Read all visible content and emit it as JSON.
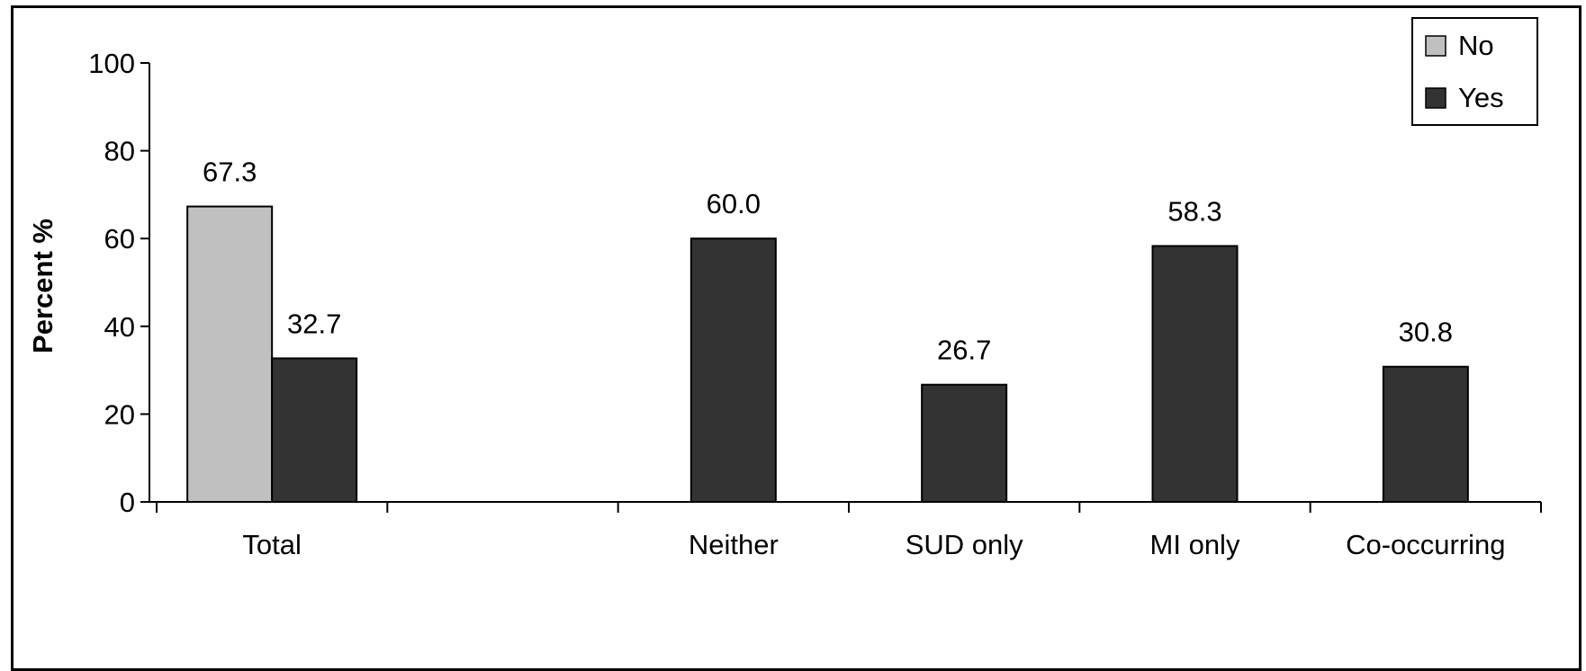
{
  "chart_data": {
    "type": "bar",
    "categories": [
      "Total",
      "",
      "Neither",
      "SUD only",
      "MI only",
      "Co-occurring"
    ],
    "series": [
      {
        "name": "No",
        "values": [
          67.3,
          null,
          null,
          null,
          null,
          null
        ],
        "color": "#c0c0c0"
      },
      {
        "name": "Yes",
        "values": [
          32.7,
          null,
          60.0,
          26.7,
          58.3,
          30.8
        ],
        "color": "#333333"
      }
    ],
    "data_labels": {
      "No": [
        "67.3",
        "",
        "",
        "",
        "",
        ""
      ],
      "Yes": [
        "32.7",
        "",
        "60.0",
        "26.7",
        "58.3",
        "30.8"
      ]
    },
    "title": "",
    "xlabel": "",
    "ylabel": "Percent %",
    "ylim": [
      0,
      100
    ],
    "yticks": [
      "0",
      "20",
      "40",
      "60",
      "80",
      "100"
    ],
    "grid": false,
    "legend_position": "top-right"
  }
}
